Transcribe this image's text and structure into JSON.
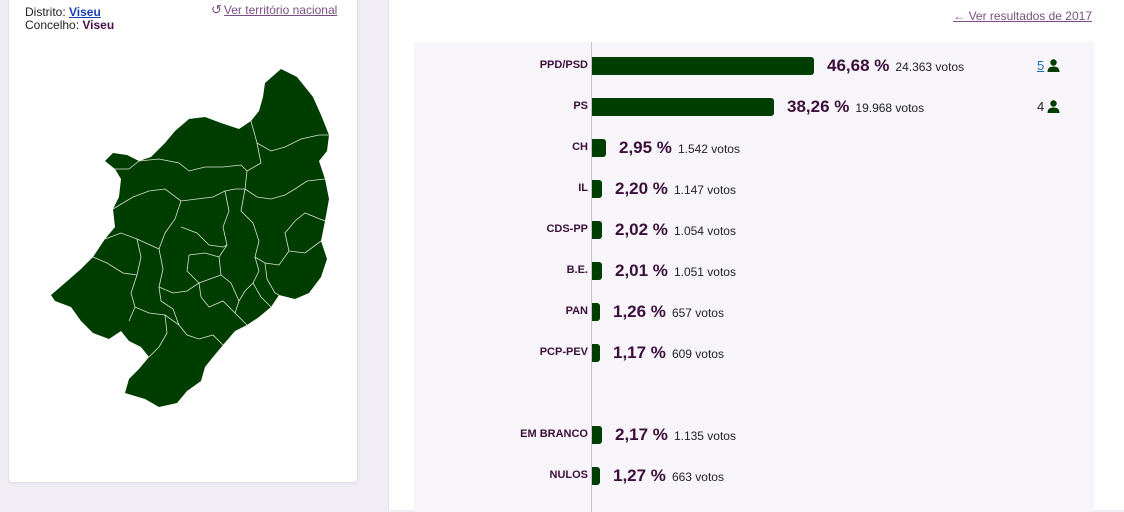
{
  "location": {
    "district_label": "Distrito:",
    "district_value": "Viseu",
    "county_label": "Concelho:",
    "county_value": "Viseu",
    "national_link": "Ver território nacional",
    "national_icon": "undo-icon"
  },
  "results": {
    "previous_link": "Ver resultados de 2017",
    "previous_icon": "arrow-left-icon",
    "bar_color": "#003d00",
    "max_percent": 46.68,
    "rows": [
      {
        "party": "PPD/PSD",
        "percent": 46.68,
        "percent_label": "46,68 %",
        "votes_label": "24.363 votos",
        "seats": "5",
        "seats_link": true
      },
      {
        "party": "PS",
        "percent": 38.26,
        "percent_label": "38,26 %",
        "votes_label": "19.968 votos",
        "seats": "4",
        "seats_link": false
      },
      {
        "party": "CH",
        "percent": 2.95,
        "percent_label": "2,95 %",
        "votes_label": "1.542 votos"
      },
      {
        "party": "IL",
        "percent": 2.2,
        "percent_label": "2,20 %",
        "votes_label": "1.147 votos"
      },
      {
        "party": "CDS-PP",
        "percent": 2.02,
        "percent_label": "2,02 %",
        "votes_label": "1.054 votos"
      },
      {
        "party": "B.E.",
        "percent": 2.01,
        "percent_label": "2,01 %",
        "votes_label": "1.051 votos"
      },
      {
        "party": "PAN",
        "percent": 1.26,
        "percent_label": "1,26 %",
        "votes_label": "657 votos"
      },
      {
        "party": "PCP-PEV",
        "percent": 1.17,
        "percent_label": "1,17 %",
        "votes_label": "609 votos"
      },
      {
        "party": "EM BRANCO",
        "percent": 2.17,
        "percent_label": "2,17 %",
        "votes_label": "1.135 votos"
      },
      {
        "party": "NULOS",
        "percent": 1.27,
        "percent_label": "1,27 %",
        "votes_label": "663 votos"
      }
    ]
  }
}
